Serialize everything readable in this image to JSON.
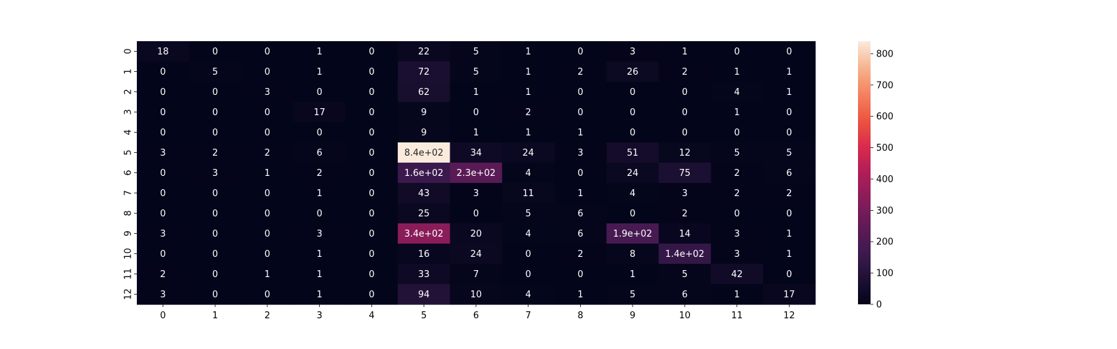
{
  "chart_data": {
    "type": "heatmap",
    "title": "",
    "xlabel": "",
    "ylabel": "",
    "x_categories": [
      "0",
      "1",
      "2",
      "3",
      "4",
      "5",
      "6",
      "7",
      "8",
      "9",
      "10",
      "11",
      "12"
    ],
    "y_categories": [
      "0",
      "1",
      "2",
      "3",
      "4",
      "5",
      "6",
      "7",
      "8",
      "9",
      "10",
      "11",
      "12"
    ],
    "values": [
      [
        18,
        0,
        0,
        1,
        0,
        22,
        5,
        1,
        0,
        3,
        1,
        0,
        0
      ],
      [
        0,
        5,
        0,
        1,
        0,
        72,
        5,
        1,
        2,
        26,
        2,
        1,
        1
      ],
      [
        0,
        0,
        3,
        0,
        0,
        62,
        1,
        1,
        0,
        0,
        0,
        4,
        1
      ],
      [
        0,
        0,
        0,
        17,
        0,
        9,
        0,
        2,
        0,
        0,
        0,
        1,
        0
      ],
      [
        0,
        0,
        0,
        0,
        0,
        9,
        1,
        1,
        1,
        0,
        0,
        0,
        0
      ],
      [
        3,
        2,
        2,
        6,
        0,
        840,
        34,
        24,
        3,
        51,
        12,
        5,
        5
      ],
      [
        0,
        3,
        1,
        2,
        0,
        160,
        230,
        4,
        0,
        24,
        75,
        2,
        6
      ],
      [
        0,
        0,
        0,
        1,
        0,
        43,
        3,
        11,
        1,
        4,
        3,
        2,
        2
      ],
      [
        0,
        0,
        0,
        0,
        0,
        25,
        0,
        5,
        6,
        0,
        2,
        0,
        0
      ],
      [
        3,
        0,
        0,
        3,
        0,
        340,
        20,
        4,
        6,
        190,
        14,
        3,
        1
      ],
      [
        0,
        0,
        0,
        1,
        0,
        16,
        24,
        0,
        2,
        8,
        140,
        3,
        1
      ],
      [
        2,
        0,
        1,
        1,
        0,
        33,
        7,
        0,
        0,
        1,
        5,
        42,
        0
      ],
      [
        3,
        0,
        0,
        1,
        0,
        94,
        10,
        4,
        1,
        5,
        6,
        1,
        17
      ]
    ],
    "annotations": [
      [
        "18",
        "0",
        "0",
        "1",
        "0",
        "22",
        "5",
        "1",
        "0",
        "3",
        "1",
        "0",
        "0"
      ],
      [
        "0",
        "5",
        "0",
        "1",
        "0",
        "72",
        "5",
        "1",
        "2",
        "26",
        "2",
        "1",
        "1"
      ],
      [
        "0",
        "0",
        "3",
        "0",
        "0",
        "62",
        "1",
        "1",
        "0",
        "0",
        "0",
        "4",
        "1"
      ],
      [
        "0",
        "0",
        "0",
        "17",
        "0",
        "9",
        "0",
        "2",
        "0",
        "0",
        "0",
        "1",
        "0"
      ],
      [
        "0",
        "0",
        "0",
        "0",
        "0",
        "9",
        "1",
        "1",
        "1",
        "0",
        "0",
        "0",
        "0"
      ],
      [
        "3",
        "2",
        "2",
        "6",
        "0",
        "8.4e+02",
        "34",
        "24",
        "3",
        "51",
        "12",
        "5",
        "5"
      ],
      [
        "0",
        "3",
        "1",
        "2",
        "0",
        "1.6e+02",
        "2.3e+02",
        "4",
        "0",
        "24",
        "75",
        "2",
        "6"
      ],
      [
        "0",
        "0",
        "0",
        "1",
        "0",
        "43",
        "3",
        "11",
        "1",
        "4",
        "3",
        "2",
        "2"
      ],
      [
        "0",
        "0",
        "0",
        "0",
        "0",
        "25",
        "0",
        "5",
        "6",
        "0",
        "2",
        "0",
        "0"
      ],
      [
        "3",
        "0",
        "0",
        "3",
        "0",
        "3.4e+02",
        "20",
        "4",
        "6",
        "1.9e+02",
        "14",
        "3",
        "1"
      ],
      [
        "0",
        "0",
        "0",
        "1",
        "0",
        "16",
        "24",
        "0",
        "2",
        "8",
        "1.4e+02",
        "3",
        "1"
      ],
      [
        "2",
        "0",
        "1",
        "1",
        "0",
        "33",
        "7",
        "0",
        "0",
        "1",
        "5",
        "42",
        "0"
      ],
      [
        "3",
        "0",
        "0",
        "1",
        "0",
        "94",
        "10",
        "4",
        "1",
        "5",
        "6",
        "1",
        "17"
      ]
    ],
    "colormap": "rocket",
    "colorbar": {
      "vmin": 0,
      "vmax": 840,
      "ticks": [
        0,
        100,
        200,
        300,
        400,
        500,
        600,
        700,
        800
      ],
      "tick_labels": [
        "0",
        "100",
        "200",
        "300",
        "400",
        "500",
        "600",
        "700",
        "800"
      ]
    },
    "text_colors": {
      "dark": "#262626",
      "light": "#ffffff"
    }
  }
}
